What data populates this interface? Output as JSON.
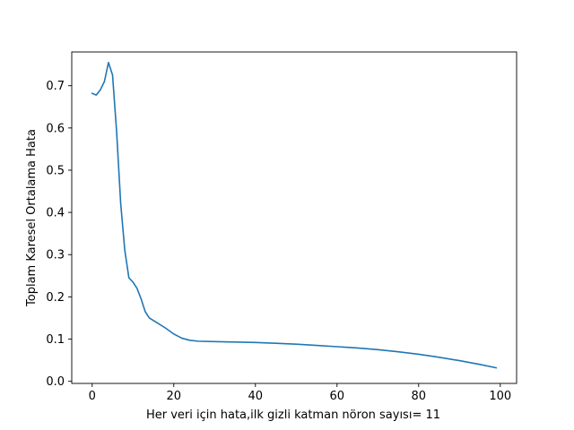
{
  "chart_data": {
    "type": "line",
    "title": "",
    "xlabel": "Her veri için hata,ilk gizli katman nöron sayısı= 11",
    "ylabel": "Toplam Karesel Ortalama Hata",
    "xlim": [
      -5,
      104
    ],
    "ylim": [
      -0.005,
      0.78
    ],
    "xticks": [
      0,
      20,
      40,
      60,
      80,
      100
    ],
    "xtick_labels": [
      "0",
      "20",
      "40",
      "60",
      "80",
      "100"
    ],
    "yticks": [
      0.0,
      0.1,
      0.2,
      0.3,
      0.4,
      0.5,
      0.6,
      0.7
    ],
    "ytick_labels": [
      "0.0",
      "0.1",
      "0.2",
      "0.3",
      "0.4",
      "0.5",
      "0.6",
      "0.7"
    ],
    "grid": false,
    "legend": "none",
    "series": [
      {
        "color": "#1f77b4",
        "x": [
          0,
          1,
          2,
          3,
          4,
          5,
          6,
          7,
          8,
          9,
          10,
          11,
          12,
          13,
          14,
          16,
          18,
          20,
          22,
          24,
          26,
          30,
          35,
          40,
          45,
          50,
          55,
          60,
          65,
          70,
          75,
          80,
          85,
          90,
          95,
          99
        ],
        "y": [
          0.682,
          0.678,
          0.69,
          0.71,
          0.755,
          0.725,
          0.59,
          0.42,
          0.31,
          0.245,
          0.235,
          0.22,
          0.195,
          0.165,
          0.15,
          0.138,
          0.126,
          0.112,
          0.102,
          0.097,
          0.095,
          0.094,
          0.093,
          0.092,
          0.09,
          0.088,
          0.085,
          0.082,
          0.079,
          0.075,
          0.07,
          0.064,
          0.057,
          0.049,
          0.04,
          0.032
        ]
      }
    ]
  }
}
